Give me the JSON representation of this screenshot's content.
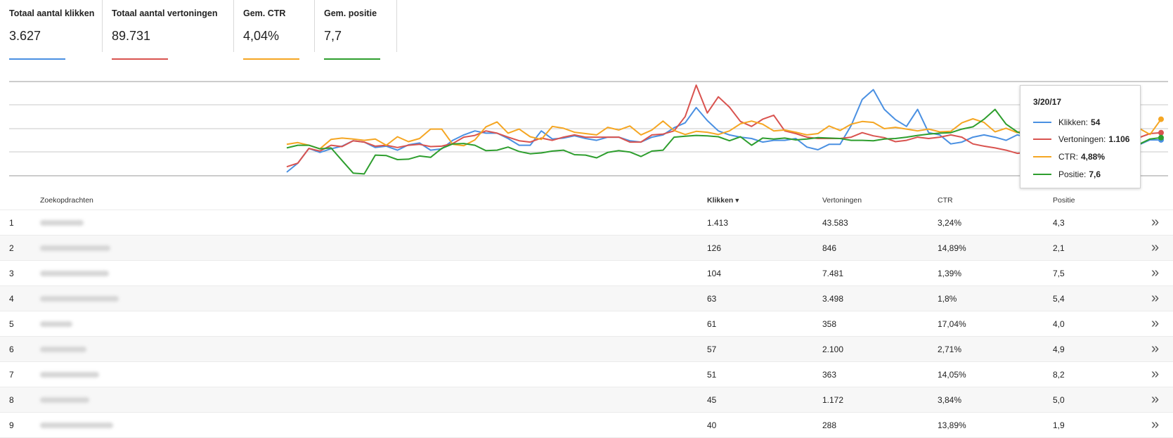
{
  "metrics": [
    {
      "label": "Totaal aantal klikken",
      "value": "3.627",
      "color": "#4a90e2"
    },
    {
      "label": "Totaal aantal vertoningen",
      "value": "89.731",
      "color": "#d9534f"
    },
    {
      "label": "Gem. CTR",
      "value": "4,04%",
      "color": "#f5a623"
    },
    {
      "label": "Gem. positie",
      "value": "7,7",
      "color": "#2e9e2e"
    }
  ],
  "chart_data": {
    "type": "line",
    "series": [
      {
        "name": "Klikken",
        "color": "#4a90e2",
        "values": [
          8,
          28,
          61,
          52,
          60,
          66,
          78,
          75,
          63,
          66,
          57,
          69,
          73,
          57,
          60,
          79,
          91,
          100,
          95,
          95,
          83,
          68,
          68,
          100,
          82,
          84,
          89,
          83,
          79,
          86,
          86,
          78,
          75,
          86,
          91,
          107,
          118,
          152,
          123,
          100,
          91,
          86,
          83,
          75,
          79,
          79,
          83,
          64,
          58,
          70,
          70,
          112,
          170,
          192,
          148,
          125,
          110,
          148,
          96,
          91,
          71,
          75,
          86,
          91,
          86,
          79,
          91,
          86,
          75,
          75,
          62,
          62,
          62,
          69,
          80,
          75,
          78,
          69,
          80,
          80
        ]
      },
      {
        "name": "Vertoningen",
        "color": "#d9534f",
        "values": [
          20,
          28,
          61,
          55,
          68,
          65,
          78,
          75,
          66,
          68,
          63,
          68,
          70,
          65,
          66,
          72,
          86,
          90,
          100,
          95,
          86,
          78,
          75,
          84,
          79,
          86,
          91,
          86,
          86,
          86,
          86,
          75,
          75,
          91,
          93,
          100,
          132,
          202,
          140,
          176,
          153,
          121,
          110,
          126,
          135,
          100,
          94,
          86,
          83,
          83,
          83,
          86,
          96,
          89,
          85,
          76,
          79,
          86,
          83,
          86,
          91,
          86,
          71,
          66,
          62,
          57,
          50,
          52,
          61,
          83,
          72,
          75,
          84,
          92,
          88,
          71,
          78,
          85,
          94,
          96
        ]
      },
      {
        "name": "CTR",
        "color": "#f5a623",
        "values": [
          70,
          74,
          68,
          60,
          81,
          84,
          82,
          79,
          82,
          68,
          87,
          76,
          83,
          104,
          104,
          70,
          67,
          80,
          109,
          120,
          95,
          104,
          87,
          81,
          110,
          106,
          97,
          94,
          91,
          108,
          102,
          111,
          91,
          102,
          122,
          101,
          92,
          99,
          97,
          92,
          100,
          116,
          122,
          115,
          100,
          102,
          97,
          91,
          94,
          111,
          101,
          115,
          121,
          119,
          105,
          108,
          104,
          100,
          104,
          98,
          99,
          118,
          127,
          119,
          98,
          106,
          96,
          106,
          107,
          93,
          104,
          96,
          110,
          116,
          104,
          113,
          96,
          106,
          92,
          126
        ]
      },
      {
        "name": "Positie",
        "color": "#2e9e2e",
        "values": [
          62,
          68,
          68,
          60,
          62,
          34,
          6,
          4,
          46,
          45,
          36,
          37,
          44,
          41,
          61,
          71,
          72,
          68,
          56,
          57,
          64,
          54,
          49,
          51,
          55,
          57,
          47,
          46,
          40,
          52,
          56,
          53,
          43,
          55,
          57,
          86,
          88,
          90,
          89,
          87,
          78,
          87,
          68,
          84,
          82,
          84,
          80,
          82,
          85,
          84,
          83,
          79,
          79,
          78,
          82,
          83,
          86,
          90,
          93,
          95,
          96,
          104,
          109,
          126,
          148,
          115,
          98,
          87,
          79,
          78,
          81,
          81,
          74,
          72,
          76,
          83,
          88,
          70,
          82,
          85
        ]
      }
    ],
    "tooltip": {
      "date": "3/20/17",
      "rows": [
        {
          "label": "Klikken:",
          "value": "54",
          "color": "#4a90e2"
        },
        {
          "label": "Vertoningen:",
          "value": "1.106",
          "color": "#d9534f"
        },
        {
          "label": "CTR:",
          "value": "4,88%",
          "color": "#f5a623"
        },
        {
          "label": "Positie:",
          "value": "7,6",
          "color": "#2e9e2e"
        }
      ]
    }
  },
  "table": {
    "headers": {
      "query": "Zoekopdrachten",
      "clicks": "Klikken",
      "sort_arrow": "▼",
      "impressions": "Vertoningen",
      "ctr": "CTR",
      "position": "Positie"
    },
    "rows": [
      {
        "num": "1",
        "clicks": "1.413",
        "impressions": "43.583",
        "ctr": "3,24%",
        "position": "4,3"
      },
      {
        "num": "2",
        "clicks": "126",
        "impressions": "846",
        "ctr": "14,89%",
        "position": "2,1"
      },
      {
        "num": "3",
        "clicks": "104",
        "impressions": "7.481",
        "ctr": "1,39%",
        "position": "7,5"
      },
      {
        "num": "4",
        "clicks": "63",
        "impressions": "3.498",
        "ctr": "1,8%",
        "position": "5,4"
      },
      {
        "num": "5",
        "clicks": "61",
        "impressions": "358",
        "ctr": "17,04%",
        "position": "4,0"
      },
      {
        "num": "6",
        "clicks": "57",
        "impressions": "2.100",
        "ctr": "2,71%",
        "position": "4,9"
      },
      {
        "num": "7",
        "clicks": "51",
        "impressions": "363",
        "ctr": "14,05%",
        "position": "8,2"
      },
      {
        "num": "8",
        "clicks": "45",
        "impressions": "1.172",
        "ctr": "3,84%",
        "position": "5,0"
      },
      {
        "num": "9",
        "clicks": "40",
        "impressions": "288",
        "ctr": "13,89%",
        "position": "1,9"
      }
    ],
    "row_action_icon": "»"
  }
}
